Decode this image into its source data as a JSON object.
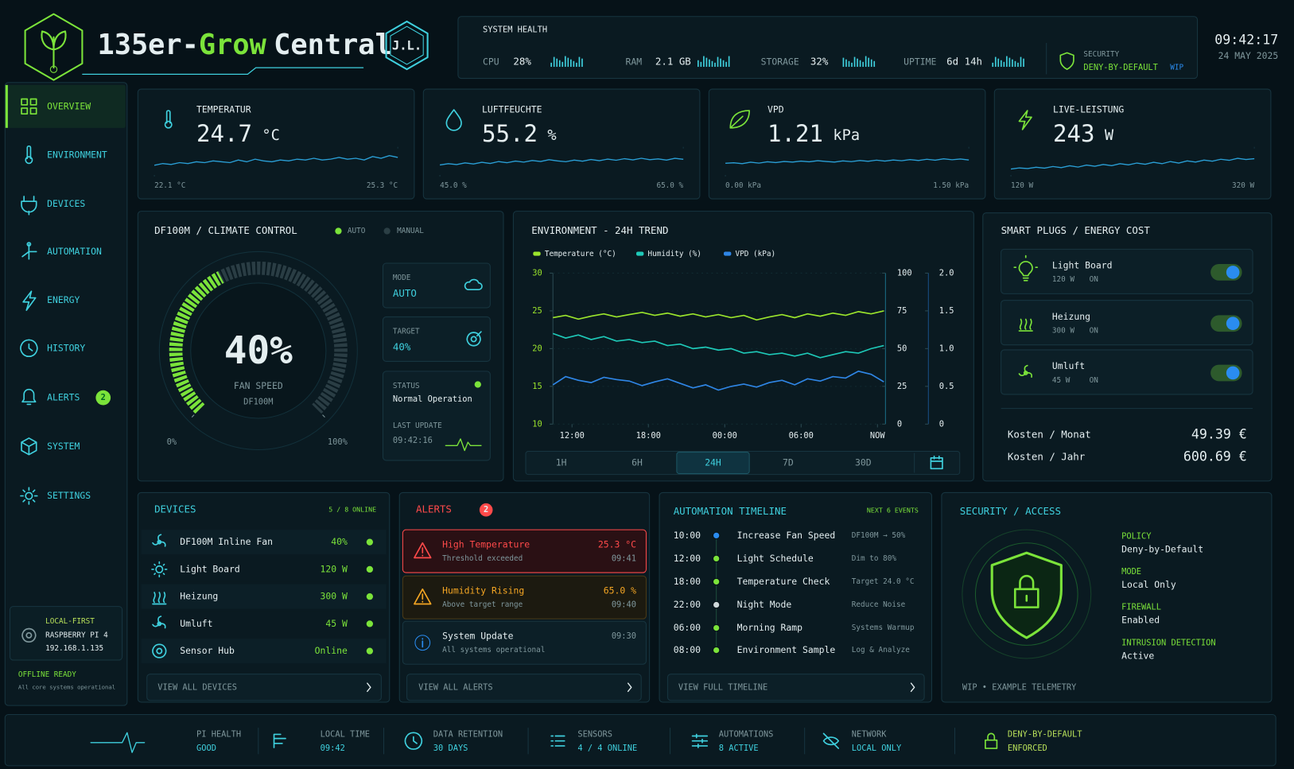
{
  "header": {
    "brand_prefix": "135er-",
    "brand_highlight": "Grow",
    "brand_suffix": "Central",
    "badge": "J.L."
  },
  "system_health": {
    "title": "SYSTEM HEALTH",
    "items": [
      {
        "label": "CPU",
        "value": "28%"
      },
      {
        "label": "RAM",
        "value": "2.1 GB"
      },
      {
        "label": "STORAGE",
        "value": "32%"
      },
      {
        "label": "UPTIME",
        "value": "6d 14h"
      }
    ],
    "security": {
      "label": "SECURITY",
      "value": "DENY-BY-DEFAULT",
      "tag": "WIP"
    }
  },
  "clock": {
    "time": "09:42:17",
    "date": "24 MAY 2025"
  },
  "nav": [
    {
      "label": "OVERVIEW"
    },
    {
      "label": "ENVIRONMENT"
    },
    {
      "label": "DEVICES"
    },
    {
      "label": "AUTOMATION"
    },
    {
      "label": "ENERGY"
    },
    {
      "label": "HISTORY"
    },
    {
      "label": "ALERTS",
      "badge": "2"
    },
    {
      "label": "SYSTEM"
    },
    {
      "label": "SETTINGS"
    }
  ],
  "pi": {
    "title": "LOCAL-FIRST",
    "device": "RASPBERRY PI 4",
    "ip": "192.168.1.135",
    "status": "OFFLINE READY",
    "note": "All core systems operational"
  },
  "metrics": [
    {
      "label": "TEMPERATUR",
      "value": 24.7,
      "unit": "°C",
      "range": [
        {
          "value": 22.1,
          "label": "22.1 °C"
        },
        {
          "value": 25.3,
          "label": "25.3 °C"
        }
      ],
      "spark": [
        23.2,
        23.4,
        23.3,
        23.5,
        23.4,
        23.6,
        23.5,
        23.7,
        23.6,
        23.5,
        23.8,
        23.6,
        23.9,
        23.7,
        23.6,
        23.8,
        23.7,
        23.9,
        23.8,
        24.0,
        23.8,
        23.9,
        24.1,
        23.9,
        24.0,
        23.8,
        24.2,
        24.0,
        24.3,
        24.1
      ]
    },
    {
      "label": "LUFTFEUCHTE",
      "value": 55.2,
      "unit": "%",
      "range": [
        {
          "value": 45,
          "label": "45.0 %"
        },
        {
          "value": 65,
          "label": "65.0 %"
        }
      ],
      "spark": [
        52.1,
        53.0,
        52.4,
        53.6,
        52.8,
        54.0,
        53.2,
        54.5,
        53.7,
        54.9,
        54.1,
        55.3,
        54.6,
        55.8,
        55.0,
        54.4,
        55.6,
        54.8,
        56.0,
        55.2,
        56.3,
        55.5,
        56.6,
        55.7,
        56.9,
        55.9,
        56.4,
        55.6,
        56.8,
        56.1
      ]
    },
    {
      "label": "VPD",
      "value": 1.21,
      "unit": "kPa",
      "range": [
        {
          "value": 0,
          "label": "0.00 kPa"
        },
        {
          "value": 1.5,
          "label": "1.50 kPa"
        }
      ],
      "spark": [
        0.62,
        0.65,
        0.6,
        0.68,
        0.63,
        0.7,
        0.66,
        0.72,
        0.69,
        0.74,
        0.7,
        0.76,
        0.72,
        0.69,
        0.75,
        0.71,
        0.77,
        0.73,
        0.79,
        0.74,
        0.8,
        0.76,
        0.82,
        0.77,
        0.84,
        0.79,
        0.86,
        0.81,
        0.85,
        0.8
      ]
    },
    {
      "label": "LIVE-LEISTUNG",
      "value": 243,
      "unit": "W",
      "range": [
        {
          "value": 120,
          "label": "120 W"
        },
        {
          "value": 320,
          "label": "320 W"
        }
      ],
      "spark": [
        162,
        170,
        165,
        175,
        168,
        180,
        172,
        185,
        176,
        190,
        182,
        195,
        186,
        200,
        192,
        205,
        196,
        210,
        200,
        215,
        205,
        220,
        212,
        226,
        218,
        232,
        224,
        238,
        230,
        236
      ]
    }
  ],
  "climate": {
    "title": "DF100M / CLIMATE CONTROL",
    "legend": [
      "AUTO",
      "MANUAL"
    ],
    "gauge": {
      "value": 40,
      "label": "40%",
      "min": {
        "value": 0,
        "label": "0%"
      },
      "max": {
        "value": 100,
        "label": "100%"
      },
      "title": "FAN SPEED",
      "device": "DF100M"
    },
    "mode": {
      "label": "MODE",
      "value": "AUTO"
    },
    "target": {
      "label": "TARGET",
      "value": "40%"
    },
    "status": {
      "label": "STATUS",
      "value": "Normal Operation"
    },
    "last_update": {
      "label": "LAST UPDATE",
      "value": "09:42:16"
    }
  },
  "trend": {
    "type": "line",
    "title": "ENVIRONMENT - 24H TREND",
    "x": [
      0,
      1,
      2,
      3,
      4,
      5,
      6,
      7,
      8,
      9,
      10,
      11,
      12,
      13,
      14,
      15,
      16,
      17,
      18,
      19,
      20,
      21,
      22,
      23,
      24,
      25,
      26
    ],
    "xlim": [
      0,
      26
    ],
    "xticks": [
      {
        "value": 1.5,
        "label": "12:00"
      },
      {
        "value": 7.5,
        "label": "18:00"
      },
      {
        "value": 13.5,
        "label": "00:00"
      },
      {
        "value": 19.5,
        "label": "06:00"
      },
      {
        "value": 25.5,
        "label": "NOW"
      }
    ],
    "ylim": [
      10,
      30
    ],
    "yticks": [
      10,
      15,
      20,
      25,
      30
    ],
    "y2lim": [
      0,
      100
    ],
    "y2ticks": [
      0,
      25,
      50,
      75,
      100
    ],
    "y3lim": [
      0,
      2
    ],
    "y3ticks": [
      0,
      0.5,
      {
        "value": 1,
        "label": "1.0"
      },
      1.5,
      {
        "value": 2,
        "label": "2.0"
      }
    ],
    "series": [
      {
        "name": "Temperature (°C)",
        "color": "#9be52c",
        "axis": "y",
        "values": [
          24.1,
          24.4,
          23.9,
          24.3,
          24.6,
          24.2,
          24.5,
          24.8,
          24.4,
          24.7,
          24.3,
          24.6,
          24.2,
          24.5,
          24.1,
          24.4,
          23.8,
          24.2,
          24.5,
          24.1,
          24.6,
          24.3,
          24.7,
          24.4,
          24.9,
          24.6,
          25.0
        ]
      },
      {
        "name": "Humidity (%)",
        "color": "#1ec9b8",
        "axis": "y2",
        "values": [
          60,
          57,
          59,
          56,
          58,
          55,
          56,
          54,
          55,
          52,
          53,
          50,
          51,
          49,
          50,
          47,
          48,
          46,
          47,
          45,
          47,
          44,
          46,
          48,
          47,
          50,
          52
        ]
      },
      {
        "name": "VPD (kPa)",
        "color": "#2f86e6",
        "axis": "y3",
        "values": [
          0.52,
          0.63,
          0.58,
          0.55,
          0.62,
          0.59,
          0.57,
          0.51,
          0.56,
          0.6,
          0.54,
          0.48,
          0.52,
          0.45,
          0.5,
          0.53,
          0.49,
          0.55,
          0.58,
          0.52,
          0.6,
          0.57,
          0.63,
          0.61,
          0.7,
          0.66,
          0.56
        ]
      }
    ],
    "ranges": [
      "1H",
      "6H",
      "24H",
      "7D",
      "30D"
    ],
    "active_range": "24H"
  },
  "plugs": {
    "title": "SMART PLUGS / ENERGY COST",
    "items": [
      {
        "name": "Light Board",
        "power": "120 W",
        "state": "ON"
      },
      {
        "name": "Heizung",
        "power": "300 W",
        "state": "ON"
      },
      {
        "name": "Umluft",
        "power": "45 W",
        "state": "ON"
      }
    ],
    "costs": [
      {
        "label": "Kosten / Monat",
        "value": "49.39 €"
      },
      {
        "label": "Kosten / Jahr",
        "value": "600.69 €"
      }
    ]
  },
  "devices": {
    "title": "DEVICES",
    "summary": "5 / 8 ONLINE",
    "rows": [
      {
        "name": "DF100M Inline Fan",
        "value": "40%"
      },
      {
        "name": "Light Board",
        "value": "120 W"
      },
      {
        "name": "Heizung",
        "value": "300 W"
      },
      {
        "name": "Umluft",
        "value": "45 W"
      },
      {
        "name": "Sensor Hub",
        "value": "Online"
      }
    ],
    "button": "VIEW ALL DEVICES"
  },
  "alerts": {
    "title": "ALERTS",
    "badge": "2",
    "items": [
      {
        "title": "High Temperature",
        "detail": "Threshold exceeded",
        "value": "25.3 °C",
        "time": "09:41"
      },
      {
        "title": "Humidity Rising",
        "detail": "Above target range",
        "value": "65.0 %",
        "time": "09:40"
      },
      {
        "title": "System Update",
        "detail": "All systems operational",
        "time": "09:30"
      }
    ],
    "button": "VIEW ALL ALERTS"
  },
  "automation": {
    "title": "AUTOMATION TIMELINE",
    "summary": "NEXT 6 EVENTS",
    "events": [
      {
        "time": "10:00",
        "name": "Increase Fan Speed",
        "detail": "DF100M → 50%"
      },
      {
        "time": "12:00",
        "name": "Light Schedule",
        "detail": "Dim to 80%"
      },
      {
        "time": "18:00",
        "name": "Temperature Check",
        "detail": "Target 24.0 °C"
      },
      {
        "time": "22:00",
        "name": "Night Mode",
        "detail": "Reduce Noise"
      },
      {
        "time": "06:00",
        "name": "Morning Ramp",
        "detail": "Systems Warmup"
      },
      {
        "time": "08:00",
        "name": "Environment Sample",
        "detail": "Log & Analyze"
      }
    ],
    "button": "VIEW FULL TIMELINE"
  },
  "security": {
    "title": "SECURITY / ACCESS",
    "fields": [
      {
        "label": "POLICY",
        "value": "Deny-by-Default"
      },
      {
        "label": "MODE",
        "value": "Local Only"
      },
      {
        "label": "FIREWALL",
        "value": "Enabled"
      },
      {
        "label": "INTRUSION DETECTION",
        "value": "Active"
      }
    ],
    "note": "WIP • EXAMPLE TELEMETRY"
  },
  "footer": [
    {
      "label": "PI HEALTH",
      "value": "GOOD"
    },
    {
      "label": "LOCAL TIME",
      "value": "09:42"
    },
    {
      "label": "DATA RETENTION",
      "value": "30 DAYS"
    },
    {
      "label": "SENSORS",
      "value": "4 / 4 ONLINE"
    },
    {
      "label": "AUTOMATIONS",
      "value": "8 ACTIVE"
    },
    {
      "label": "NETWORK",
      "value": "LOCAL ONLY"
    },
    {
      "label": "DENY-BY-DEFAULT",
      "value": "ENFORCED"
    }
  ]
}
